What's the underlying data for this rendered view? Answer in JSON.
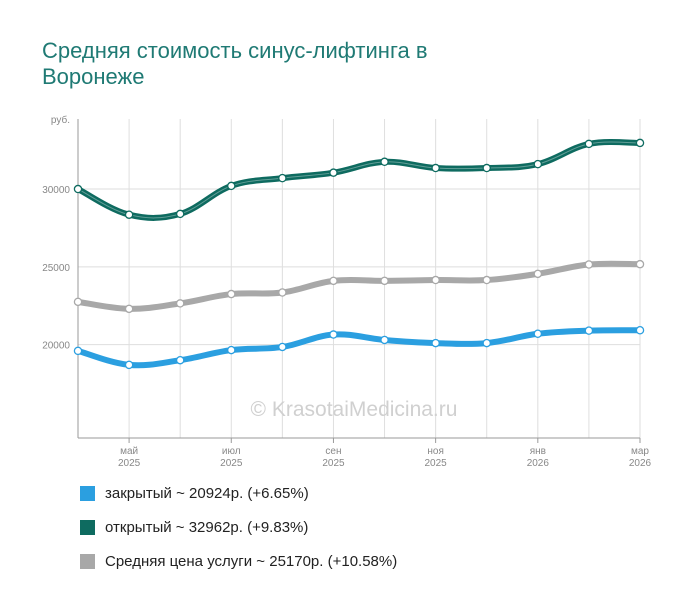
{
  "title": "Средняя стоимость синус-лифтинга в Воронеже",
  "watermark": "© KrasotaiMedicina.ru",
  "chart_data": {
    "type": "line",
    "ylabel": "руб.",
    "ylim": [
      14000,
      34500
    ],
    "yticks": [
      20000,
      25000,
      30000
    ],
    "x": [
      "2025-04",
      "2025-05",
      "2025-06",
      "2025-07",
      "2025-08",
      "2025-09",
      "2025-10",
      "2025-11",
      "2025-12",
      "2026-01",
      "2026-02",
      "2026-03"
    ],
    "xtick_labels": [
      {
        "index": 1,
        "month": "май",
        "year": "2025"
      },
      {
        "index": 3,
        "month": "июл",
        "year": "2025"
      },
      {
        "index": 5,
        "month": "сен",
        "year": "2025"
      },
      {
        "index": 7,
        "month": "ноя",
        "year": "2025"
      },
      {
        "index": 9,
        "month": "янв",
        "year": "2026"
      },
      {
        "index": 11,
        "month": "мар",
        "year": "2026"
      }
    ],
    "grid": true,
    "series": [
      {
        "key": "closed",
        "color": "#2b9fe0",
        "values": [
          19600,
          18700,
          19000,
          19650,
          19850,
          20650,
          20300,
          20100,
          20100,
          20700,
          20900,
          20924
        ]
      },
      {
        "key": "open",
        "color": "#0e6b60",
        "values": [
          30000,
          28350,
          28400,
          30200,
          30700,
          31050,
          31750,
          31350,
          31350,
          31600,
          32900,
          32962
        ]
      },
      {
        "key": "average",
        "color": "#a8a8a8",
        "values": [
          22750,
          22300,
          22650,
          23250,
          23350,
          24100,
          24100,
          24150,
          24150,
          24550,
          25150,
          25170
        ]
      }
    ]
  },
  "legend": [
    {
      "label": "закрытый ~ 20924р. (+6.65%)",
      "color": "#2b9fe0"
    },
    {
      "label": "открытый ~ 32962р. (+9.83%)",
      "color": "#0e6b60"
    },
    {
      "label": "Средняя цена услуги ~ 25170р. (+10.58%)",
      "color": "#a8a8a8"
    }
  ]
}
